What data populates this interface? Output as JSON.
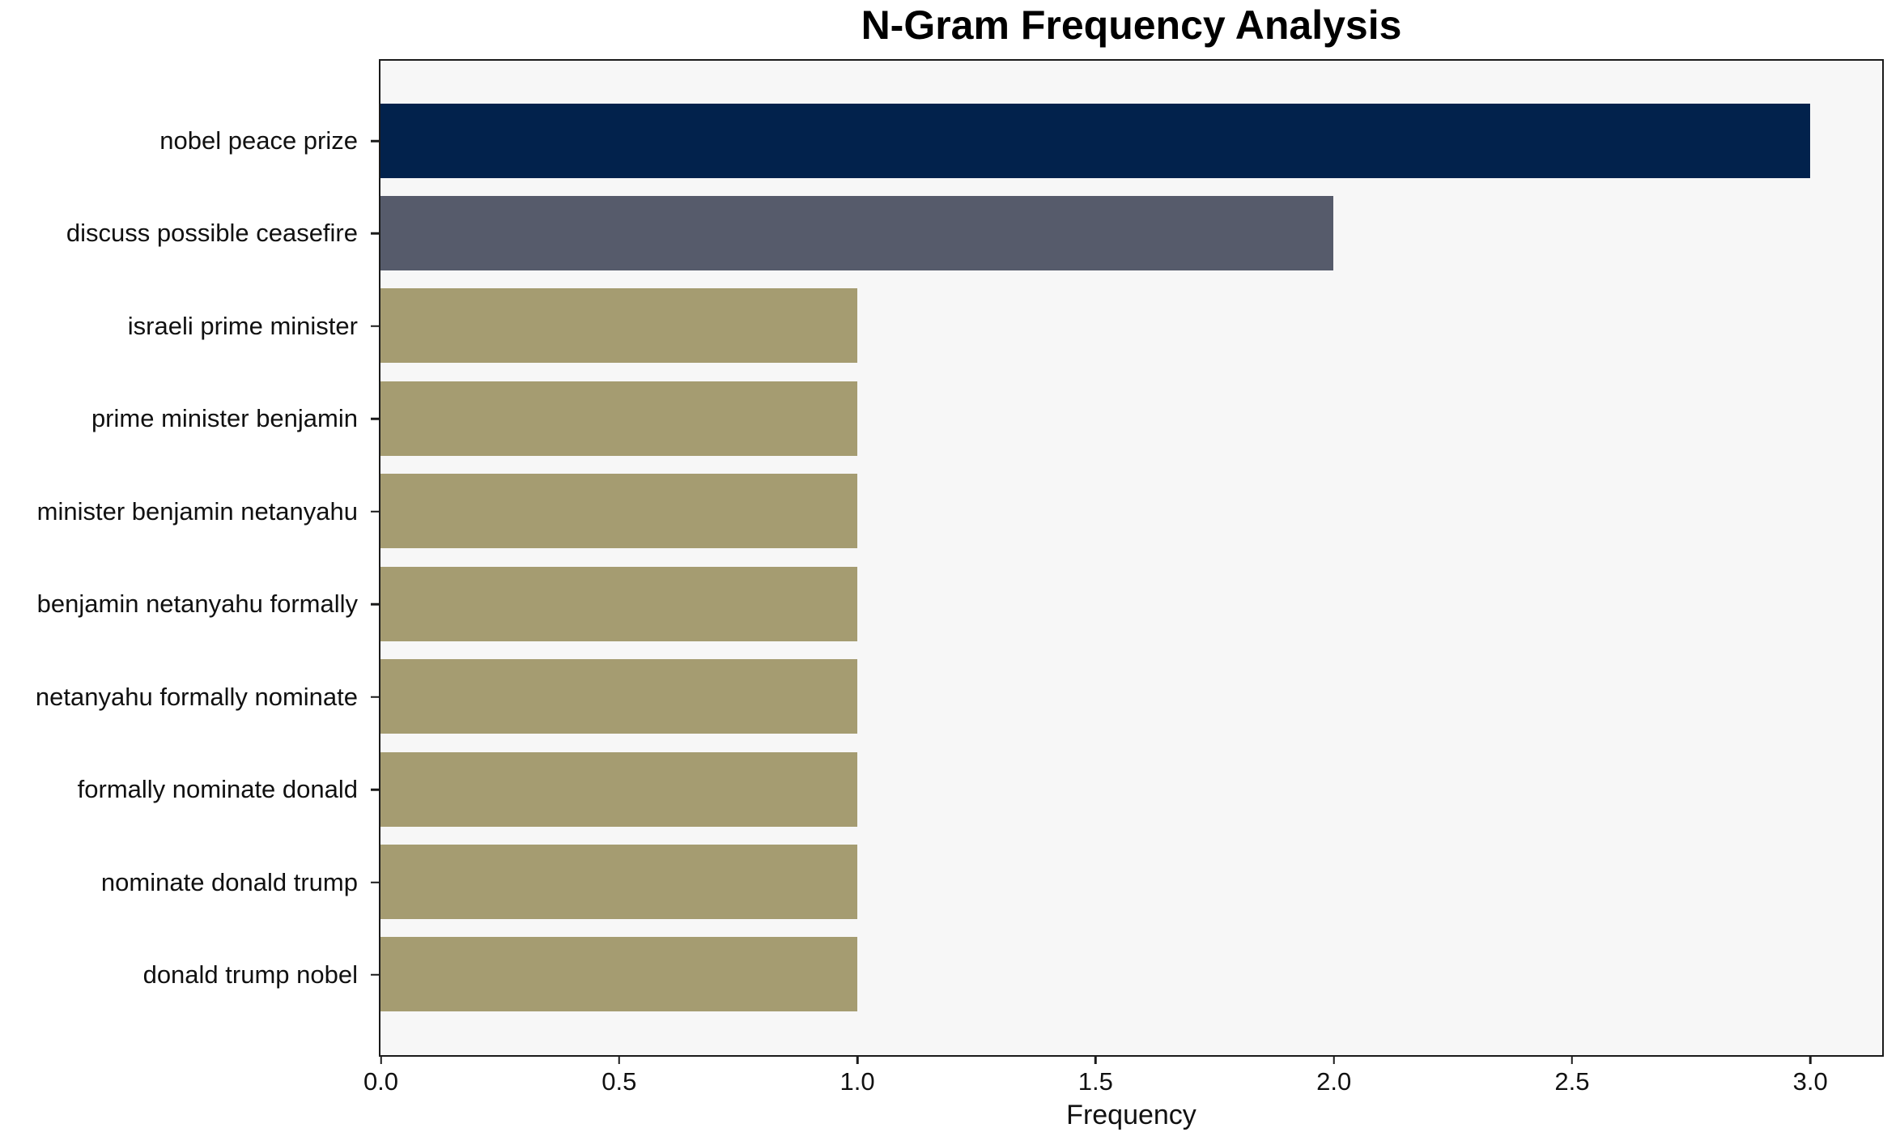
{
  "chart_data": {
    "type": "bar",
    "orientation": "horizontal",
    "title": "N-Gram Frequency Analysis",
    "xlabel": "Frequency",
    "ylabel": "",
    "categories": [
      "nobel peace prize",
      "discuss possible ceasefire",
      "israeli prime minister",
      "prime minister benjamin",
      "minister benjamin netanyahu",
      "benjamin netanyahu formally",
      "netanyahu formally nominate",
      "formally nominate donald",
      "nominate donald trump",
      "donald trump nobel"
    ],
    "values": [
      3,
      2,
      1,
      1,
      1,
      1,
      1,
      1,
      1,
      1
    ],
    "bar_colors": [
      "#02224c",
      "#565b6b",
      "#a59c71",
      "#a59c71",
      "#a59c71",
      "#a59c71",
      "#a59c71",
      "#a59c71",
      "#a59c71",
      "#a59c71"
    ],
    "xlim": [
      0,
      3.15
    ],
    "xticks": {
      "labels": [
        "0.0",
        "0.5",
        "1.0",
        "1.5",
        "2.0",
        "2.5",
        "3.0"
      ],
      "values": [
        0,
        0.5,
        1.0,
        1.5,
        2.0,
        2.5,
        3.0
      ]
    },
    "grid": false,
    "legend": null,
    "colors": {
      "plot_background": "#f7f7f7",
      "figure_background": "#ffffff",
      "spine": "#1a1a1a",
      "text": "#111111"
    }
  }
}
